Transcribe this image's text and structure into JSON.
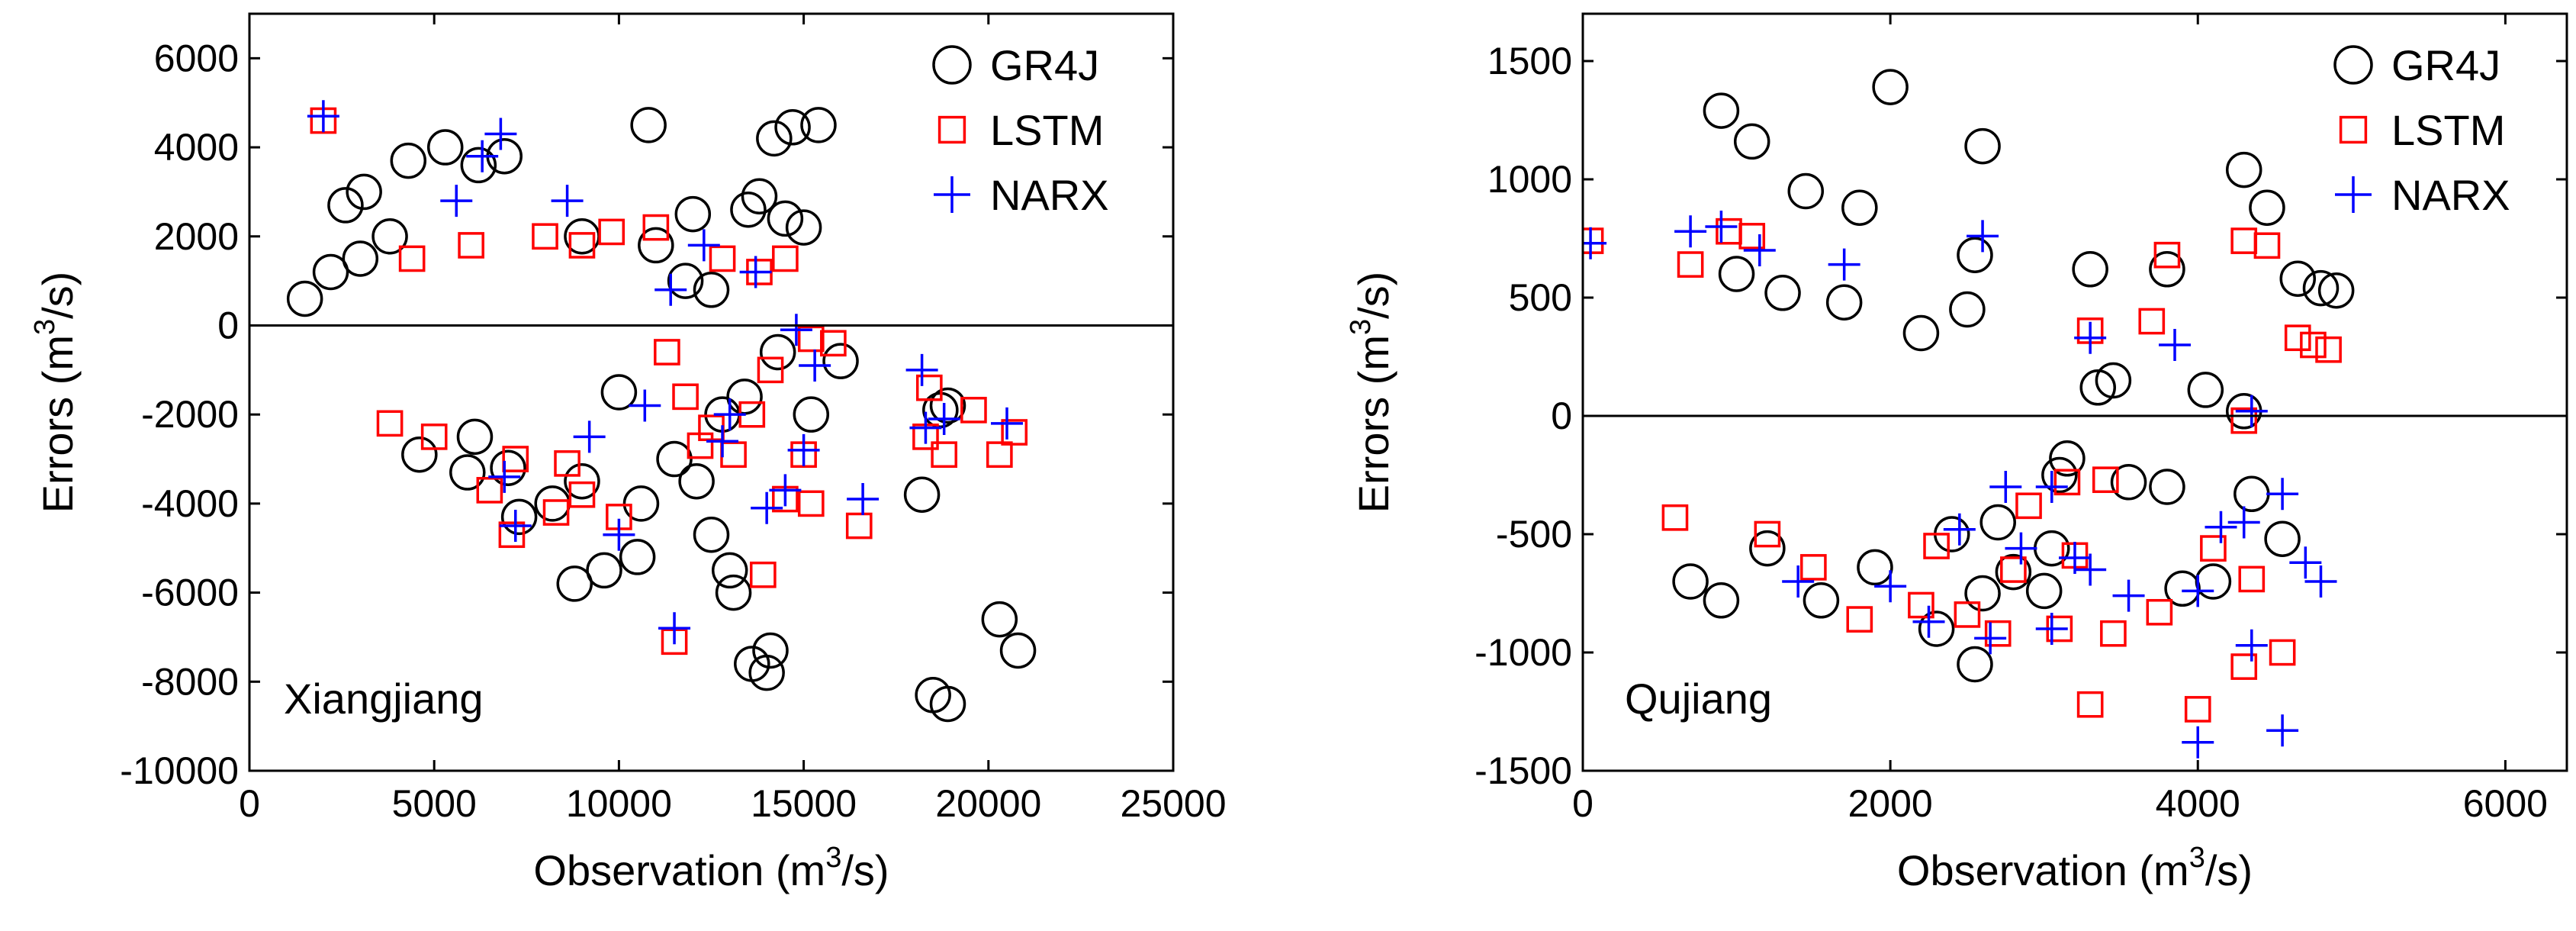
{
  "chart_data": [
    {
      "type": "scatter",
      "annotation": "Xiangjiang",
      "xlabel": {
        "main": "Observation (m",
        "sup": "3",
        "tail": "/s)"
      },
      "ylabel": {
        "main": "Errors (m",
        "sup": "3",
        "tail": "/s)"
      },
      "xlim": [
        0,
        25000
      ],
      "ylim": [
        -10000,
        7000
      ],
      "xticks": [
        0,
        5000,
        10000,
        15000,
        20000,
        25000
      ],
      "yticks": [
        -10000,
        -8000,
        -6000,
        -4000,
        -2000,
        0,
        2000,
        4000,
        6000
      ],
      "zero_line": 0,
      "series": [
        {
          "name": "GR4J",
          "marker": "circle",
          "color": "#000000",
          "points": [
            [
              10800,
              4500
            ],
            [
              14200,
              4200
            ],
            [
              14700,
              4450
            ],
            [
              15400,
              4500
            ],
            [
              5300,
              4000
            ],
            [
              6200,
              3600
            ],
            [
              6900,
              3800
            ],
            [
              4300,
              3700
            ],
            [
              3100,
              3000
            ],
            [
              2600,
              2700
            ],
            [
              13800,
              2900
            ],
            [
              14500,
              2400
            ],
            [
              13500,
              2600
            ],
            [
              12000,
              2500
            ],
            [
              15000,
              2200
            ],
            [
              16000,
              -800
            ],
            [
              9000,
              -3500
            ],
            [
              8200,
              -4000
            ],
            [
              8800,
              -5800
            ],
            [
              9600,
              -5500
            ],
            [
              10500,
              -5200
            ],
            [
              12500,
              -4700
            ],
            [
              13000,
              -5500
            ],
            [
              13100,
              -6000
            ],
            [
              13600,
              -7600
            ],
            [
              14000,
              -7800
            ],
            [
              14100,
              -7300
            ],
            [
              18200,
              -3800
            ],
            [
              18500,
              -8300
            ],
            [
              18900,
              -8500
            ],
            [
              20300,
              -6600
            ],
            [
              20800,
              -7300
            ],
            [
              18700,
              -1900
            ],
            [
              18900,
              -1800
            ],
            [
              11500,
              -3000
            ],
            [
              10600,
              -4000
            ],
            [
              12100,
              -3500
            ],
            [
              7300,
              -4300
            ],
            [
              5900,
              -3300
            ],
            [
              4600,
              -2900
            ],
            [
              11800,
              1000
            ],
            [
              12800,
              -2000
            ],
            [
              13400,
              -1600
            ],
            [
              14300,
              -600
            ],
            [
              15200,
              -2000
            ],
            [
              1500,
              600
            ],
            [
              2200,
              1200
            ],
            [
              3000,
              1500
            ],
            [
              3800,
              2000
            ],
            [
              6100,
              -2500
            ],
            [
              7000,
              -3200
            ],
            [
              9000,
              2000
            ],
            [
              10000,
              -1500
            ],
            [
              11000,
              1800
            ],
            [
              12500,
              800
            ]
          ]
        },
        {
          "name": "LSTM",
          "marker": "square",
          "color": "#ff0000",
          "points": [
            [
              2000,
              4600
            ],
            [
              8000,
              2000
            ],
            [
              9000,
              1800
            ],
            [
              9800,
              2100
            ],
            [
              11000,
              2200
            ],
            [
              12800,
              1500
            ],
            [
              13800,
              1200
            ],
            [
              14500,
              1500
            ],
            [
              15200,
              -300
            ],
            [
              15800,
              -400
            ],
            [
              13900,
              -5600
            ],
            [
              11500,
              -7100
            ],
            [
              14500,
              -3900
            ],
            [
              15200,
              -4000
            ],
            [
              16500,
              -4500
            ],
            [
              15000,
              -2900
            ],
            [
              18400,
              -1400
            ],
            [
              18300,
              -2500
            ],
            [
              18800,
              -2900
            ],
            [
              19600,
              -1900
            ],
            [
              20300,
              -2900
            ],
            [
              20700,
              -2400
            ],
            [
              7100,
              -4700
            ],
            [
              6500,
              -3700
            ],
            [
              8300,
              -4200
            ],
            [
              9000,
              -3800
            ],
            [
              10000,
              -4300
            ],
            [
              11800,
              -1600
            ],
            [
              12500,
              -2300
            ],
            [
              13100,
              -2900
            ],
            [
              13600,
              -2000
            ],
            [
              5000,
              -2500
            ],
            [
              3800,
              -2200
            ],
            [
              4400,
              1500
            ],
            [
              6000,
              1800
            ],
            [
              7200,
              -3000
            ],
            [
              8600,
              -3100
            ],
            [
              12200,
              -2700
            ],
            [
              11300,
              -600
            ],
            [
              14100,
              -1000
            ]
          ]
        },
        {
          "name": "NARX",
          "marker": "plus",
          "color": "#0000ff",
          "points": [
            [
              2000,
              4700
            ],
            [
              6800,
              4300
            ],
            [
              6300,
              3800
            ],
            [
              5600,
              2800
            ],
            [
              8600,
              2800
            ],
            [
              10000,
              -4700
            ],
            [
              11500,
              -6800
            ],
            [
              7200,
              -4500
            ],
            [
              6900,
              -3400
            ],
            [
              15000,
              -2800
            ],
            [
              16600,
              -3900
            ],
            [
              14500,
              -3700
            ],
            [
              13000,
              -2000
            ],
            [
              12300,
              1800
            ],
            [
              13700,
              1200
            ],
            [
              14800,
              -100
            ],
            [
              15300,
              -900
            ],
            [
              18200,
              -1000
            ],
            [
              18300,
              -2300
            ],
            [
              18800,
              -2100
            ],
            [
              20500,
              -2200
            ],
            [
              9200,
              -2500
            ],
            [
              10700,
              -1800
            ],
            [
              11400,
              800
            ],
            [
              12800,
              -2600
            ],
            [
              14000,
              -4100
            ]
          ]
        }
      ]
    },
    {
      "type": "scatter",
      "annotation": "Qujiang",
      "xlabel": {
        "main": "Observation (m",
        "sup": "3",
        "tail": "/s)"
      },
      "ylabel": {
        "main": "Errors (m",
        "sup": "3",
        "tail": "/s)"
      },
      "xlim": [
        0,
        6400
      ],
      "ylim": [
        -1500,
        1700
      ],
      "xticks": [
        0,
        2000,
        4000,
        6000
      ],
      "yticks": [
        -1500,
        -1000,
        -500,
        0,
        500,
        1000,
        1500
      ],
      "zero_line": 0,
      "series": [
        {
          "name": "GR4J",
          "marker": "circle",
          "color": "#000000",
          "points": [
            [
              900,
              1290
            ],
            [
              1100,
              1160
            ],
            [
              2000,
              1390
            ],
            [
              2600,
              1140
            ],
            [
              4300,
              1040
            ],
            [
              4450,
              880
            ],
            [
              1800,
              880
            ],
            [
              1450,
              950
            ],
            [
              2550,
              680
            ],
            [
              3300,
              620
            ],
            [
              3800,
              620
            ],
            [
              4650,
              580
            ],
            [
              4800,
              540
            ],
            [
              4900,
              530
            ],
            [
              4050,
              110
            ],
            [
              4300,
              20
            ],
            [
              3350,
              120
            ],
            [
              3450,
              150
            ],
            [
              3150,
              -180
            ],
            [
              3100,
              -250
            ],
            [
              3550,
              -280
            ],
            [
              3800,
              -300
            ],
            [
              4350,
              -330
            ],
            [
              4550,
              -520
            ],
            [
              4100,
              -700
            ],
            [
              3900,
              -730
            ],
            [
              3000,
              -740
            ],
            [
              2600,
              -750
            ],
            [
              2550,
              -1050
            ],
            [
              900,
              -780
            ],
            [
              700,
              -700
            ],
            [
              1550,
              -780
            ],
            [
              2300,
              -900
            ],
            [
              2700,
              -450
            ],
            [
              1200,
              -560
            ],
            [
              1900,
              -640
            ],
            [
              2400,
              -500
            ],
            [
              2800,
              -660
            ],
            [
              3050,
              -560
            ],
            [
              2200,
              350
            ],
            [
              2500,
              450
            ],
            [
              1000,
              600
            ],
            [
              1300,
              520
            ],
            [
              1700,
              480
            ]
          ]
        },
        {
          "name": "LSTM",
          "marker": "square",
          "color": "#ff0000",
          "points": [
            [
              50,
              740
            ],
            [
              950,
              780
            ],
            [
              1100,
              760
            ],
            [
              3800,
              680
            ],
            [
              4300,
              740
            ],
            [
              4450,
              720
            ],
            [
              4650,
              330
            ],
            [
              4750,
              300
            ],
            [
              4850,
              280
            ],
            [
              3300,
              360
            ],
            [
              3700,
              400
            ],
            [
              4300,
              -20
            ],
            [
              3300,
              -1220
            ],
            [
              4000,
              -1240
            ],
            [
              4300,
              -1060
            ],
            [
              4550,
              -1000
            ],
            [
              4100,
              -560
            ],
            [
              4350,
              -690
            ],
            [
              3750,
              -830
            ],
            [
              3450,
              -920
            ],
            [
              3100,
              -900
            ],
            [
              2800,
              -650
            ],
            [
              2500,
              -840
            ],
            [
              1800,
              -860
            ],
            [
              2200,
              -800
            ],
            [
              2700,
              -920
            ],
            [
              3200,
              -590
            ],
            [
              3150,
              -280
            ],
            [
              3400,
              -270
            ],
            [
              2900,
              -380
            ],
            [
              2300,
              -550
            ],
            [
              1500,
              -640
            ],
            [
              1200,
              -500
            ],
            [
              600,
              -430
            ],
            [
              700,
              640
            ]
          ]
        },
        {
          "name": "NARX",
          "marker": "plus",
          "color": "#0000ff",
          "points": [
            [
              50,
              730
            ],
            [
              700,
              780
            ],
            [
              900,
              800
            ],
            [
              1150,
              700
            ],
            [
              1700,
              640
            ],
            [
              2600,
              760
            ],
            [
              3300,
              330
            ],
            [
              3850,
              300
            ],
            [
              4350,
              20
            ],
            [
              4000,
              -1380
            ],
            [
              4550,
              -1330
            ],
            [
              4350,
              -970
            ],
            [
              4550,
              -330
            ],
            [
              4150,
              -470
            ],
            [
              4300,
              -450
            ],
            [
              4700,
              -620
            ],
            [
              4800,
              -700
            ],
            [
              4000,
              -740
            ],
            [
              3550,
              -760
            ],
            [
              3300,
              -650
            ],
            [
              3050,
              -900
            ],
            [
              2650,
              -940
            ],
            [
              2250,
              -870
            ],
            [
              2000,
              -720
            ],
            [
              1400,
              -700
            ],
            [
              2450,
              -480
            ],
            [
              2850,
              -560
            ],
            [
              2750,
              -300
            ],
            [
              3050,
              -300
            ],
            [
              3200,
              -600
            ]
          ]
        }
      ]
    }
  ]
}
